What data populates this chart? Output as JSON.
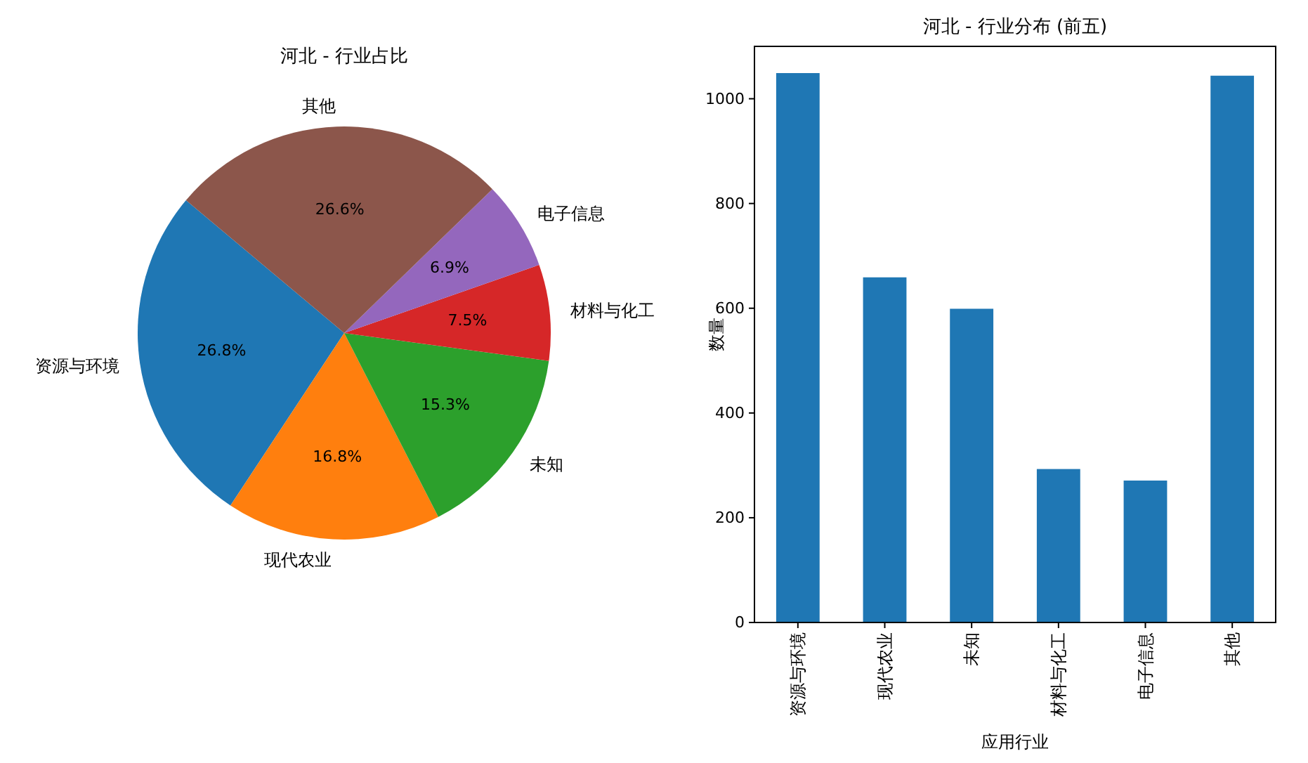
{
  "chart_data": [
    {
      "type": "pie",
      "title": "河北 - 行业占比",
      "categories": [
        "资源与环境",
        "现代农业",
        "未知",
        "材料与化工",
        "电子信息",
        "其他"
      ],
      "values": [
        26.8,
        16.8,
        15.3,
        7.5,
        6.9,
        26.6
      ],
      "colors": [
        "#1f77b4",
        "#ff7f0e",
        "#2ca02c",
        "#d62728",
        "#9467bd",
        "#8c564b"
      ],
      "value_labels": [
        "26.8%",
        "16.8%",
        "15.3%",
        "7.5%",
        "6.9%",
        "26.6%"
      ]
    },
    {
      "type": "bar",
      "title": "河北 - 行业分布 (前五)",
      "xlabel": "应用行业",
      "ylabel": "数量",
      "categories": [
        "资源与环境",
        "现代农业",
        "未知",
        "材料与化工",
        "电子信息",
        "其他"
      ],
      "values": [
        1049,
        659,
        599,
        293,
        271,
        1044
      ],
      "color": "#1f77b4",
      "ylim": [
        0,
        1100
      ],
      "yticks": [
        0,
        200,
        400,
        600,
        800,
        1000
      ]
    }
  ]
}
